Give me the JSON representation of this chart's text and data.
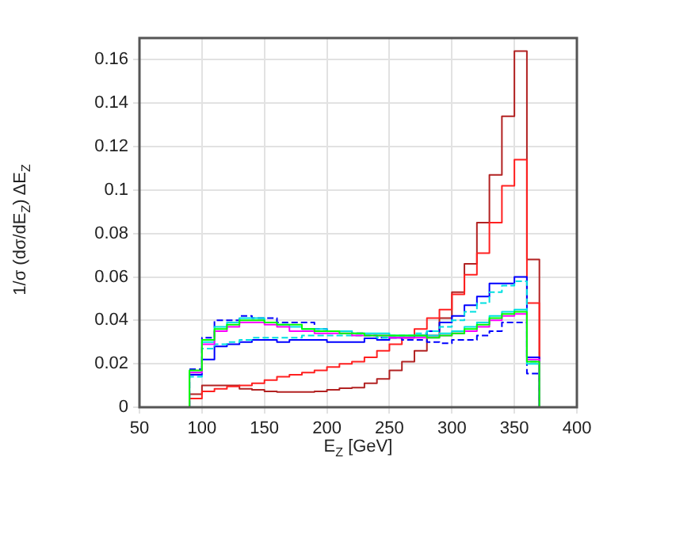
{
  "chart_data": {
    "type": "histogram",
    "xlabel": "E$_{Z}$ [GeV]",
    "ylabel": "1/σ (dσ/dE$_{Z}$) ΔE$_{Z}$",
    "bins": [
      90,
      100,
      110,
      120,
      130,
      140,
      150,
      160,
      170,
      180,
      190,
      200,
      210,
      220,
      230,
      240,
      250,
      260,
      270,
      280,
      290,
      300,
      310,
      320,
      330,
      340,
      350,
      360,
      370
    ],
    "series": [
      {
        "color": "#b22222",
        "line_style": "solid",
        "values": [
          0.006,
          0.01,
          0.01,
          0.01,
          0.0085,
          0.008,
          0.0073,
          0.007,
          0.007,
          0.007,
          0.0073,
          0.008,
          0.0088,
          0.009,
          0.011,
          0.013,
          0.017,
          0.021,
          0.026,
          0.033,
          0.041,
          0.053,
          0.066,
          0.085,
          0.107,
          0.134,
          0.164,
          0.068
        ]
      },
      {
        "color": "#ff2020",
        "line_style": "solid",
        "values": [
          0.004,
          0.0073,
          0.0085,
          0.0096,
          0.01,
          0.011,
          0.0125,
          0.014,
          0.015,
          0.016,
          0.017,
          0.0185,
          0.02,
          0.021,
          0.023,
          0.026,
          0.029,
          0.032,
          0.036,
          0.041,
          0.045,
          0.052,
          0.061,
          0.071,
          0.085,
          0.102,
          0.114,
          0.048
        ]
      },
      {
        "color": "#0000ff",
        "line_style": "solid",
        "values": [
          0.015,
          0.022,
          0.028,
          0.029,
          0.03,
          0.031,
          0.031,
          0.03,
          0.031,
          0.031,
          0.031,
          0.03,
          0.03,
          0.03,
          0.0317,
          0.031,
          0.032,
          0.032,
          0.033,
          0.035,
          0.039,
          0.042,
          0.047,
          0.051,
          0.057,
          0.057,
          0.06,
          0.023
        ]
      },
      {
        "color": "#0000ff",
        "line_style": "dashed",
        "values": [
          0.0175,
          0.032,
          0.04,
          0.04,
          0.042,
          0.041,
          0.041,
          0.039,
          0.039,
          0.039,
          0.036,
          0.035,
          0.035,
          0.034,
          0.033,
          0.032,
          0.032,
          0.031,
          0.031,
          0.03,
          0.0295,
          0.031,
          0.031,
          0.033,
          0.035,
          0.039,
          0.039,
          0.0155
        ]
      },
      {
        "color": "#00e0e0",
        "line_style": "solid",
        "values": [
          0.016,
          0.03,
          0.037,
          0.039,
          0.041,
          0.041,
          0.039,
          0.038,
          0.037,
          0.036,
          0.036,
          0.035,
          0.035,
          0.034,
          0.034,
          0.034,
          0.033,
          0.033,
          0.033,
          0.033,
          0.034,
          0.035,
          0.037,
          0.039,
          0.042,
          0.044,
          0.045,
          0.02
        ]
      },
      {
        "color": "#00e0e0",
        "line_style": "dashed",
        "values": [
          0.014,
          0.027,
          0.029,
          0.03,
          0.031,
          0.032,
          0.032,
          0.032,
          0.032,
          0.033,
          0.033,
          0.033,
          0.033,
          0.033,
          0.033,
          0.032,
          0.033,
          0.033,
          0.034,
          0.035,
          0.037,
          0.04,
          0.044,
          0.048,
          0.053,
          0.056,
          0.058,
          0.021
        ]
      },
      {
        "color": "#ff00ff",
        "line_style": "solid",
        "values": [
          0.016,
          0.029,
          0.035,
          0.037,
          0.039,
          0.039,
          0.038,
          0.037,
          0.035,
          0.035,
          0.034,
          0.034,
          0.034,
          0.033,
          0.033,
          0.033,
          0.032,
          0.032,
          0.032,
          0.032,
          0.033,
          0.034,
          0.035,
          0.037,
          0.04,
          0.042,
          0.043,
          0.022
        ]
      },
      {
        "color": "#00ff00",
        "line_style": "solid",
        "values": [
          0.017,
          0.031,
          0.036,
          0.038,
          0.04,
          0.04,
          0.039,
          0.038,
          0.038,
          0.036,
          0.035,
          0.035,
          0.034,
          0.034,
          0.033,
          0.033,
          0.033,
          0.033,
          0.033,
          0.032,
          0.033,
          0.034,
          0.036,
          0.038,
          0.041,
          0.043,
          0.044,
          0.021
        ]
      }
    ],
    "xlim": [
      50,
      400
    ],
    "xticks": [
      50,
      100,
      150,
      200,
      250,
      300,
      350,
      400
    ],
    "ylim": [
      0,
      0.17
    ],
    "yticks": [
      0,
      0.02,
      0.04,
      0.06,
      0.08,
      0.1,
      0.12,
      0.14,
      0.16
    ],
    "grid": true,
    "legend": false
  }
}
